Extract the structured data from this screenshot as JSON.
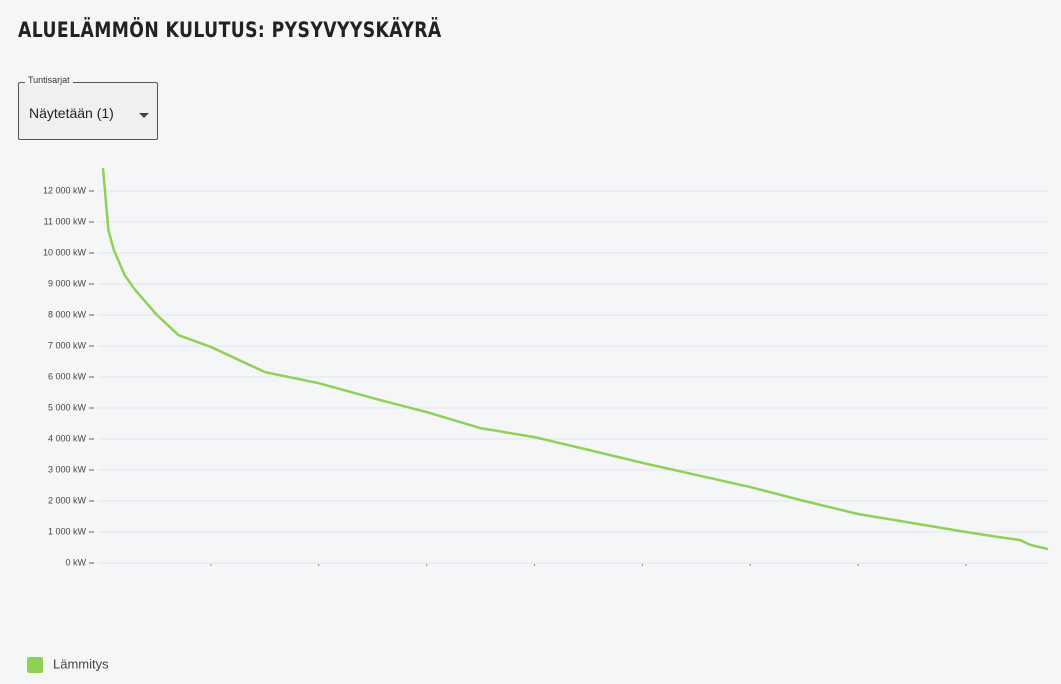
{
  "header": {
    "title": "ALUELÄMMÖN KULUTUS: PYSYVYYSKÄYRÄ"
  },
  "dropdown": {
    "label": "Tuntisarjat",
    "value": "Näytetään (1)"
  },
  "chart_data": {
    "type": "line",
    "x": [
      0,
      50,
      100,
      200,
      300,
      500,
      700,
      1000,
      1500,
      2000,
      2500,
      3000,
      3500,
      4000,
      4500,
      5000,
      5500,
      6000,
      6500,
      7000,
      7500,
      8000,
      8300,
      8500,
      8600,
      8760
    ],
    "series": [
      {
        "name": "Lämmitys",
        "color": "#8fd155",
        "values": [
          12740,
          10740,
          10100,
          9290,
          8800,
          8000,
          7350,
          6970,
          6160,
          5800,
          5320,
          4870,
          4350,
          4060,
          3650,
          3230,
          2840,
          2450,
          2000,
          1580,
          1290,
          1000,
          840,
          740,
          580,
          450
        ]
      }
    ],
    "xlim": [
      0,
      8760
    ],
    "xticks": [
      1000,
      2000,
      3000,
      4000,
      5000,
      6000,
      7000,
      8000
    ],
    "ylim": [
      0,
      12740
    ],
    "yticks": [
      {
        "value": 0,
        "label": "0 kW"
      },
      {
        "value": 1000,
        "label": "1 000 kW"
      },
      {
        "value": 2000,
        "label": "2 000 kW"
      },
      {
        "value": 3000,
        "label": "3 000 kW"
      },
      {
        "value": 4000,
        "label": "4 000 kW"
      },
      {
        "value": 5000,
        "label": "5 000 kW"
      },
      {
        "value": 6000,
        "label": "6 000 kW"
      },
      {
        "value": 7000,
        "label": "7 000 kW"
      },
      {
        "value": 8000,
        "label": "8 000 kW"
      },
      {
        "value": 9000,
        "label": "9 000 kW"
      },
      {
        "value": 10000,
        "label": "10 000 kW"
      },
      {
        "value": 11000,
        "label": "11 000 kW"
      },
      {
        "value": 12000,
        "label": "12 000 kW"
      }
    ],
    "grid": true
  }
}
